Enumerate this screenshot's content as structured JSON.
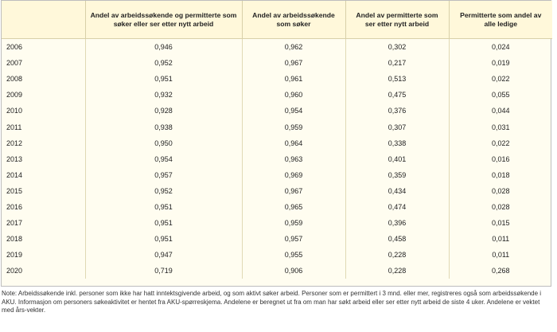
{
  "table": {
    "headers": [
      "",
      "Andel av arbeidssøkende og permitterte som søker eller ser etter nytt arbeid",
      "Andel av arbeidssøkende som søker",
      "Andel av permitterte som ser etter nytt arbeid",
      "Permitterte som andel av alle ledige"
    ],
    "rows": [
      [
        "2006",
        "0,946",
        "0,962",
        "0,302",
        "0,024"
      ],
      [
        "2007",
        "0,952",
        "0,967",
        "0,217",
        "0,019"
      ],
      [
        "2008",
        "0,951",
        "0,961",
        "0,513",
        "0,022"
      ],
      [
        "2009",
        "0,932",
        "0,960",
        "0,475",
        "0,055"
      ],
      [
        "2010",
        "0,928",
        "0,954",
        "0,376",
        "0,044"
      ],
      [
        "2011",
        "0,938",
        "0,959",
        "0,307",
        "0,031"
      ],
      [
        "2012",
        "0,950",
        "0,964",
        "0,338",
        "0,022"
      ],
      [
        "2013",
        "0,954",
        "0,963",
        "0,401",
        "0,016"
      ],
      [
        "2014",
        "0,957",
        "0,969",
        "0,359",
        "0,018"
      ],
      [
        "2015",
        "0,952",
        "0,967",
        "0,434",
        "0,028"
      ],
      [
        "2016",
        "0,951",
        "0,965",
        "0,474",
        "0,028"
      ],
      [
        "2017",
        "0,951",
        "0,959",
        "0,396",
        "0,015"
      ],
      [
        "2018",
        "0,951",
        "0,957",
        "0,458",
        "0,011"
      ],
      [
        "2019",
        "0,947",
        "0,955",
        "0,228",
        "0,011"
      ],
      [
        "2020",
        "0,719",
        "0,906",
        "0,228",
        "0,268"
      ]
    ]
  },
  "note": "Note: Arbeidssøkende inkl. personer som ikke har hatt inntektsgivende arbeid, og som aktivt søker arbeid. Personer som er permittert i 3 mnd. eller mer, registreres også som arbeidssøkende i AKU. Informasjon om personers søkeaktivitet er hentet fra AKU-spørreskjema. Andelene er beregnet ut fra om man har søkt arbeid eller ser etter nytt arbeid de siste 4 uker. Andelene er vektet med års-vekter.",
  "colors": {
    "background": "#fffdf0",
    "header_background": "#fff8da",
    "border": "#bdbdbd"
  }
}
